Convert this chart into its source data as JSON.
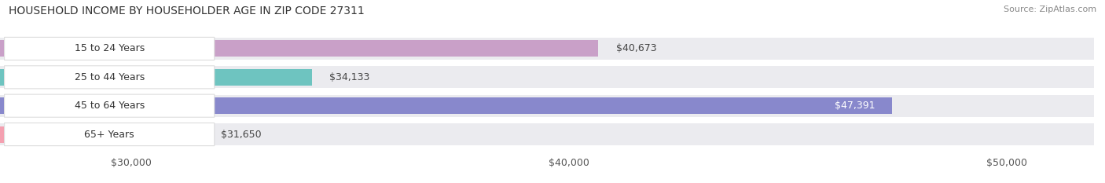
{
  "title": "HOUSEHOLD INCOME BY HOUSEHOLDER AGE IN ZIP CODE 27311",
  "source": "Source: ZipAtlas.com",
  "categories": [
    "15 to 24 Years",
    "25 to 44 Years",
    "45 to 64 Years",
    "65+ Years"
  ],
  "values": [
    40673,
    34133,
    47391,
    31650
  ],
  "bar_colors": [
    "#c9a0c8",
    "#6ec4c0",
    "#8888cc",
    "#f4a0b0"
  ],
  "label_colors": [
    "#555555",
    "#555555",
    "#ffffff",
    "#555555"
  ],
  "xlim": [
    27000,
    52000
  ],
  "xticks": [
    30000,
    40000,
    50000
  ],
  "xtick_labels": [
    "$30,000",
    "$40,000",
    "$50,000"
  ],
  "title_fontsize": 10,
  "source_fontsize": 8,
  "bar_label_fontsize": 9,
  "tick_fontsize": 9,
  "category_fontsize": 9,
  "background_color": "#ffffff",
  "bar_background_color": "#ebebef",
  "fig_width": 14.06,
  "fig_height": 2.33,
  "bar_height": 0.58,
  "label_fmt": [
    "$40,673",
    "$34,133",
    "$47,391",
    "$31,650"
  ],
  "label_inside": [
    false,
    false,
    true,
    false
  ]
}
